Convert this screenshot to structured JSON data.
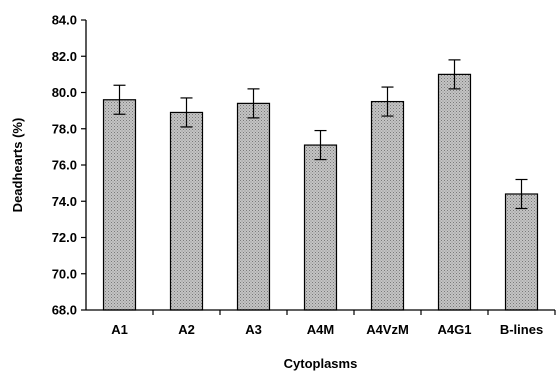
{
  "chart_data": {
    "type": "bar",
    "title": "",
    "xlabel": "Cytoplasms",
    "ylabel": "Deadhearts (%)",
    "ylim": [
      68.0,
      84.0
    ],
    "ytick_step": 2.0,
    "ytick_labels": [
      "68.0",
      "70.0",
      "72.0",
      "74.0",
      "76.0",
      "78.0",
      "80.0",
      "82.0",
      "84.0"
    ],
    "grid": false,
    "legend": "none",
    "error_bars": true,
    "categories": [
      "A1",
      "A2",
      "A3",
      "A4M",
      "A4VzM",
      "A4G1",
      "B-lines"
    ],
    "values": [
      79.6,
      78.9,
      79.4,
      77.1,
      79.5,
      81.0,
      74.4
    ],
    "errors": [
      0.8,
      0.8,
      0.8,
      0.8,
      0.8,
      0.8,
      0.8
    ],
    "colors": {
      "bar_fill": "#b8b8b8",
      "bar_stroke": "#000000",
      "axis": "#000000"
    }
  }
}
